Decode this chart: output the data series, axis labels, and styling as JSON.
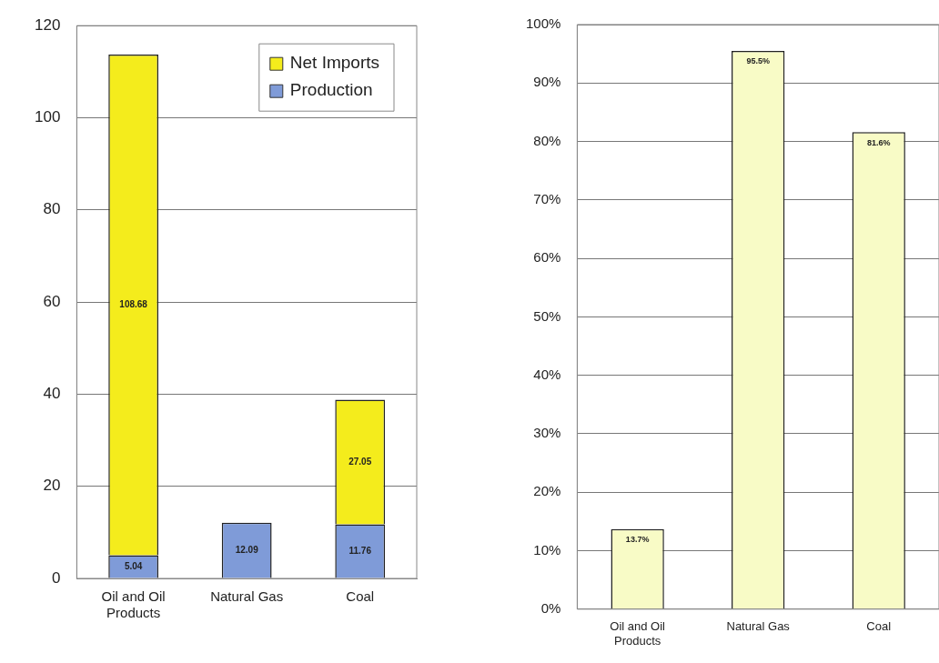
{
  "chart_data": [
    {
      "type": "bar",
      "stacked": true,
      "categories": [
        "Oil and Oil Products",
        "Natural Gas",
        "Coal"
      ],
      "series": [
        {
          "name": "Production",
          "color": "#7f9bd8",
          "values": [
            5.04,
            12.09,
            11.76
          ]
        },
        {
          "name": "Net Imports",
          "color": "#f4ec1c",
          "values": [
            108.68,
            null,
            27.05
          ]
        }
      ],
      "ylim": [
        0,
        120
      ],
      "yticks": [
        0,
        20,
        40,
        60,
        80,
        100,
        120
      ],
      "grid": "y",
      "legend": "top right",
      "data_labels": true
    },
    {
      "type": "bar",
      "categories": [
        "Oil and Oil Products",
        "Natural Gas",
        "Coal"
      ],
      "values": [
        13.7,
        95.5,
        81.6
      ],
      "color": "#f8fbc6",
      "value_labels": [
        "13.7%",
        "95.5%",
        "81.6%"
      ],
      "ylim": [
        0,
        100
      ],
      "yticks": [
        {
          "value": 0,
          "label": "0%"
        },
        {
          "value": 10,
          "label": "10%"
        },
        {
          "value": 20,
          "label": "20%"
        },
        {
          "value": 30,
          "label": "30%"
        },
        {
          "value": 40,
          "label": "40%"
        },
        {
          "value": 50,
          "label": "50%"
        },
        {
          "value": 60,
          "label": "60%"
        },
        {
          "value": 70,
          "label": "70%"
        },
        {
          "value": 80,
          "label": "80%"
        },
        {
          "value": 90,
          "label": "90%"
        },
        {
          "value": 100,
          "label": "100%"
        }
      ],
      "grid": "y"
    }
  ]
}
